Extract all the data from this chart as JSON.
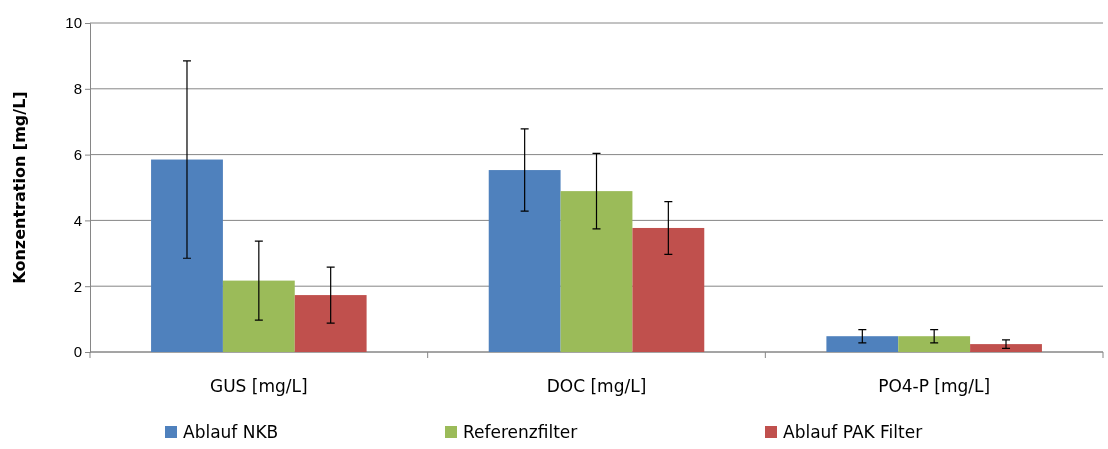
{
  "chart_data": {
    "type": "bar",
    "ylabel": "Konzentration  [mg/L]",
    "categories": [
      "GUS [mg/L]",
      "DOC [mg/L]",
      "PO4-P [mg/L]"
    ],
    "series": [
      {
        "name": "Ablauf NKB",
        "color": "#4f81bd",
        "values": [
          5.85,
          5.53,
          0.48
        ],
        "errors": [
          3.0,
          1.25,
          0.2
        ]
      },
      {
        "name": "Referenzfilter",
        "color": "#9bbb59",
        "values": [
          2.17,
          4.89,
          0.48
        ],
        "errors": [
          1.2,
          1.15,
          0.2
        ]
      },
      {
        "name": "Ablauf PAK Filter",
        "color": "#c0504d",
        "values": [
          1.73,
          3.77,
          0.24
        ],
        "errors": [
          0.85,
          0.8,
          0.13
        ]
      }
    ],
    "ylim": [
      0,
      10
    ],
    "yticks": [
      0,
      2,
      4,
      6,
      8,
      10
    ],
    "grid": "y",
    "legend": "bottom"
  }
}
